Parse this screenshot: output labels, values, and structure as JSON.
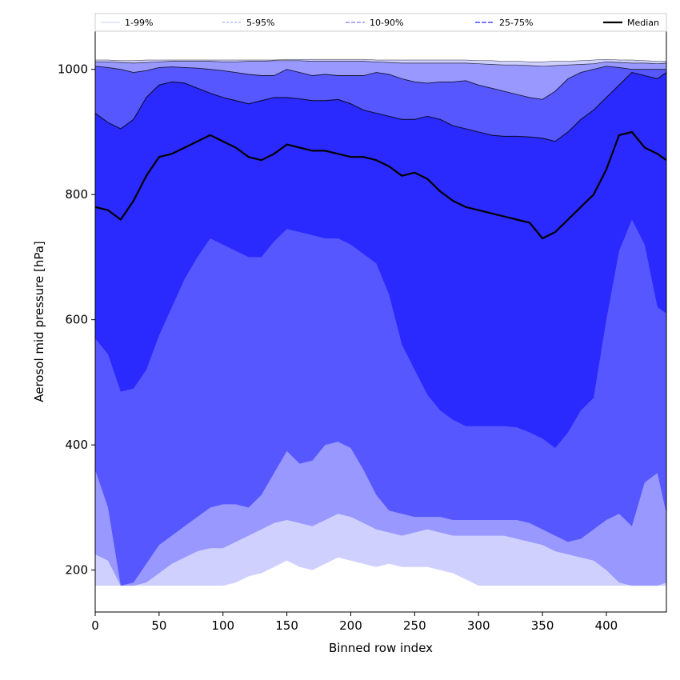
{
  "chart_data": {
    "type": "area",
    "xlabel": "Binned row index",
    "ylabel": "Aerosol mid pressure [hPa]",
    "xlim": [
      0,
      447
    ],
    "ylim": [
      133,
      1061
    ],
    "x_ticks": [
      0,
      50,
      100,
      150,
      200,
      250,
      300,
      350,
      400
    ],
    "y_ticks": [
      200,
      400,
      600,
      800,
      1000
    ],
    "grid": false,
    "legend_position": "top",
    "x": [
      0,
      10,
      20,
      30,
      40,
      50,
      60,
      70,
      80,
      90,
      100,
      110,
      120,
      130,
      140,
      150,
      160,
      170,
      180,
      190,
      200,
      210,
      220,
      230,
      240,
      250,
      260,
      270,
      280,
      290,
      300,
      310,
      320,
      330,
      340,
      350,
      360,
      370,
      380,
      390,
      400,
      410,
      420,
      430,
      440,
      447
    ],
    "bands": [
      {
        "name": "1-99%",
        "color": "#d0d0ff",
        "lower": [
          175,
          175,
          175,
          175,
          175,
          175,
          175,
          175,
          175,
          175,
          175,
          180,
          190,
          195,
          205,
          215,
          205,
          200,
          210,
          220,
          215,
          210,
          205,
          210,
          205,
          205,
          205,
          200,
          195,
          185,
          175,
          175,
          175,
          175,
          175,
          175,
          175,
          175,
          175,
          175,
          175,
          175,
          175,
          175,
          175,
          175
        ],
        "upper": [
          1015,
          1015,
          1014,
          1014,
          1015,
          1015,
          1015,
          1015,
          1015,
          1015,
          1015,
          1015,
          1015,
          1015,
          1015,
          1016,
          1016,
          1016,
          1016,
          1016,
          1016,
          1016,
          1015,
          1015,
          1015,
          1015,
          1015,
          1015,
          1015,
          1015,
          1014,
          1014,
          1013,
          1013,
          1012,
          1012,
          1013,
          1013,
          1014,
          1015,
          1016,
          1015,
          1015,
          1014,
          1013,
          1013
        ]
      },
      {
        "name": "5-95%",
        "color": "#9898ff",
        "lower": [
          225,
          215,
          175,
          175,
          180,
          195,
          210,
          220,
          230,
          235,
          235,
          245,
          255,
          265,
          275,
          280,
          275,
          270,
          280,
          290,
          285,
          275,
          265,
          260,
          255,
          260,
          265,
          260,
          255,
          255,
          255,
          255,
          255,
          250,
          245,
          240,
          230,
          225,
          220,
          215,
          200,
          180,
          175,
          175,
          175,
          180
        ],
        "upper": [
          1012,
          1012,
          1011,
          1010,
          1011,
          1012,
          1013,
          1013,
          1013,
          1013,
          1012,
          1012,
          1013,
          1013,
          1014,
          1014,
          1014,
          1013,
          1013,
          1013,
          1013,
          1013,
          1012,
          1011,
          1010,
          1010,
          1010,
          1010,
          1010,
          1010,
          1009,
          1008,
          1007,
          1007,
          1006,
          1005,
          1006,
          1007,
          1008,
          1009,
          1012,
          1011,
          1010,
          1010,
          1009,
          1010
        ]
      },
      {
        "name": "10-90%",
        "color": "#5757ff",
        "lower": [
          360,
          300,
          175,
          180,
          210,
          240,
          255,
          270,
          285,
          300,
          305,
          305,
          300,
          320,
          355,
          390,
          370,
          375,
          400,
          405,
          395,
          360,
          320,
          295,
          290,
          285,
          285,
          285,
          280,
          280,
          280,
          280,
          280,
          280,
          275,
          265,
          255,
          245,
          250,
          265,
          280,
          290,
          270,
          340,
          355,
          290
        ],
        "upper": [
          1005,
          1003,
          1000,
          995,
          998,
          1003,
          1004,
          1003,
          1002,
          1000,
          998,
          995,
          992,
          990,
          990,
          1000,
          995,
          990,
          992,
          990,
          990,
          990,
          995,
          992,
          985,
          980,
          978,
          980,
          980,
          982,
          975,
          970,
          965,
          960,
          955,
          952,
          965,
          985,
          995,
          1000,
          1005,
          1003,
          1000,
          1000,
          1000,
          1000
        ]
      },
      {
        "name": "25-75%",
        "color": "#2a2aff",
        "lower": [
          570,
          545,
          485,
          490,
          520,
          575,
          620,
          665,
          700,
          730,
          720,
          710,
          700,
          700,
          725,
          745,
          740,
          735,
          730,
          730,
          720,
          705,
          690,
          640,
          560,
          520,
          480,
          455,
          440,
          430,
          430,
          430,
          430,
          428,
          420,
          410,
          395,
          420,
          455,
          475,
          600,
          710,
          760,
          720,
          620,
          610
        ],
        "upper": [
          930,
          915,
          905,
          920,
          955,
          975,
          980,
          978,
          970,
          962,
          955,
          950,
          945,
          950,
          955,
          955,
          953,
          950,
          950,
          952,
          945,
          935,
          930,
          925,
          920,
          920,
          925,
          920,
          910,
          905,
          900,
          895,
          893,
          893,
          892,
          890,
          885,
          900,
          920,
          935,
          955,
          975,
          995,
          990,
          985,
          995
        ]
      }
    ],
    "series": [
      {
        "name": "Median",
        "color": "#000000",
        "values": [
          780,
          775,
          760,
          790,
          830,
          860,
          865,
          875,
          885,
          895,
          885,
          875,
          860,
          855,
          865,
          880,
          875,
          870,
          870,
          865,
          860,
          860,
          855,
          845,
          830,
          835,
          825,
          805,
          790,
          780,
          775,
          770,
          765,
          760,
          755,
          730,
          740,
          760,
          780,
          800,
          840,
          895,
          900,
          875,
          865,
          855
        ]
      }
    ],
    "legend": [
      {
        "label": "1-99%",
        "style": "thin-light"
      },
      {
        "label": "5-95%",
        "style": "thin-dashed-light"
      },
      {
        "label": "10-90%",
        "style": "dashed"
      },
      {
        "label": "25-75%",
        "style": "dashed-dark"
      },
      {
        "label": "Median",
        "style": "solid-thick"
      }
    ]
  }
}
